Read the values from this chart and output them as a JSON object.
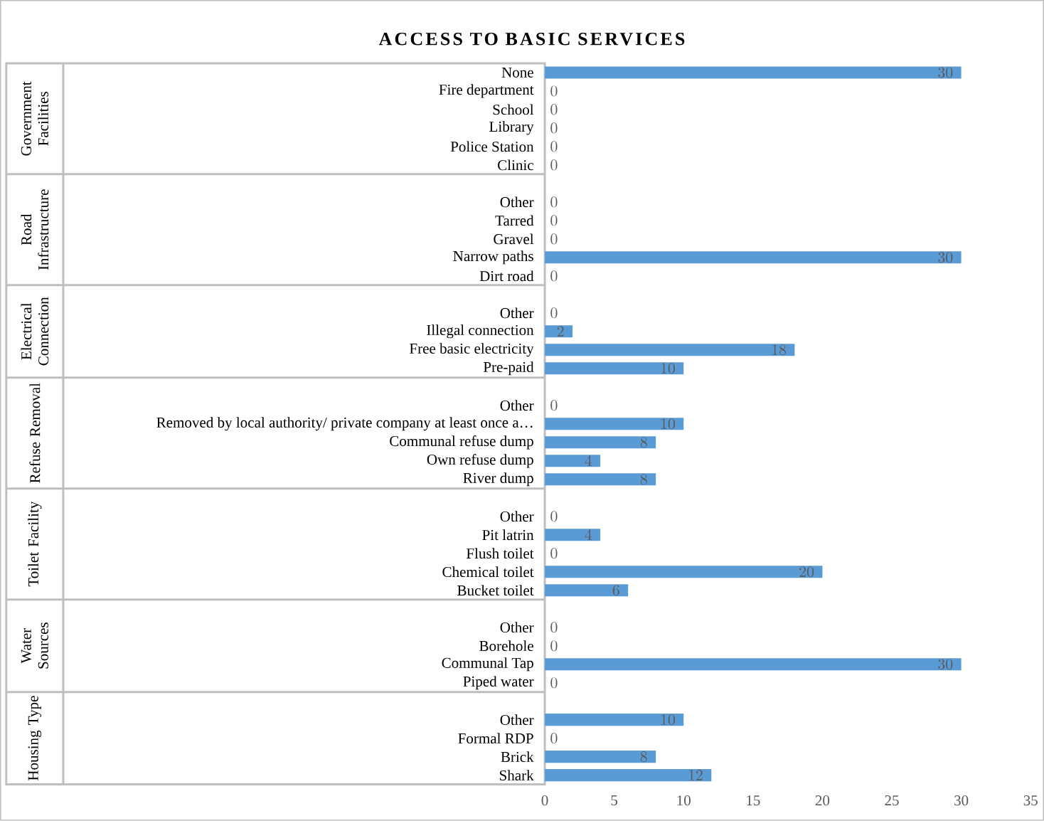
{
  "chart_data": {
    "type": "bar",
    "orientation": "horizontal",
    "title": "ACCESS TO BASIC SERVICES",
    "categories": [
      "None",
      "Fire department",
      "School",
      "Library",
      "Police Station",
      "Clinic",
      null,
      "Other",
      "Tarred",
      "Gravel",
      "Narrow paths",
      "Dirt road",
      null,
      "Other",
      "Illegal connection",
      "Free basic electricity",
      "Pre-paid",
      null,
      "Other",
      "Removed by local authority/ private company at least once a…",
      "Communal refuse dump",
      "Own refuse dump",
      "River dump",
      null,
      "Other",
      "Pit latrin",
      "Flush toilet",
      "Chemical toilet",
      "Bucket toilet",
      null,
      "Other",
      "Borehole",
      "Communal Tap",
      "Piped water",
      null,
      "Other",
      "Formal RDP",
      "Brick",
      "Shark"
    ],
    "values": [
      30,
      0,
      0,
      0,
      0,
      0,
      null,
      0,
      0,
      0,
      30,
      0,
      null,
      0,
      2,
      18,
      10,
      null,
      0,
      10,
      8,
      4,
      8,
      null,
      0,
      4,
      0,
      20,
      6,
      null,
      0,
      0,
      30,
      0,
      null,
      10,
      0,
      8,
      12
    ],
    "color": "#5b9bd5",
    "data_labels": true,
    "xlim": [
      0,
      35
    ],
    "xticks": [
      0,
      5,
      10,
      15,
      20,
      25,
      30,
      35
    ],
    "annotations": [
      "Government Facilities",
      "Road Infrastructure",
      "Electrical Connection",
      "Refuse Removal",
      "Toilet Facility",
      "Water Sources",
      "Housing Type"
    ]
  }
}
